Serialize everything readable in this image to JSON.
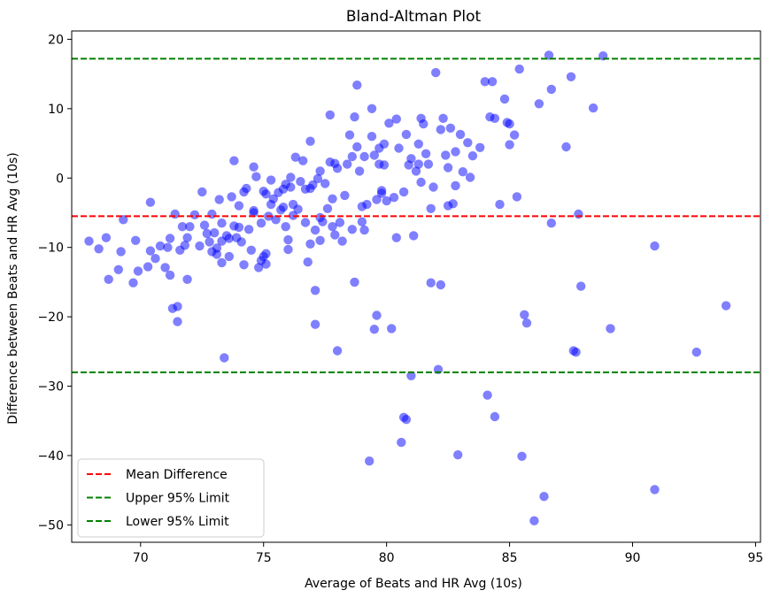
{
  "chart_data": {
    "type": "scatter",
    "title": "Bland-Altman Plot",
    "xlabel": "Average of Beats and HR Avg (10s)",
    "ylabel": "Difference between Beats and HR Avg (10s)",
    "xlim": [
      67.2,
      95.2
    ],
    "ylim": [
      -52.5,
      21.2
    ],
    "xticks": [
      70,
      75,
      80,
      85,
      90,
      95
    ],
    "yticks": [
      -50,
      -40,
      -30,
      -20,
      -10,
      0,
      10,
      20
    ],
    "grid": false,
    "legend_position": "lower-left",
    "point_color": "#0000ff",
    "lines": [
      {
        "name": "Mean Difference",
        "y": -5.5,
        "color": "#ff0000"
      },
      {
        "name": "Upper 95% Limit",
        "y": 17.2,
        "color": "#008000"
      },
      {
        "name": "Lower 95% Limit",
        "y": -28.0,
        "color": "#008000"
      }
    ],
    "points": [
      [
        67.9,
        -9.1
      ],
      [
        68.3,
        -10.2
      ],
      [
        68.6,
        -8.6
      ],
      [
        68.7,
        -14.6
      ],
      [
        69.1,
        -13.2
      ],
      [
        69.2,
        -10.6
      ],
      [
        69.3,
        -6.0
      ],
      [
        69.7,
        -15.1
      ],
      [
        69.8,
        -9.0
      ],
      [
        69.9,
        -13.4
      ],
      [
        70.3,
        -12.8
      ],
      [
        70.4,
        -10.5
      ],
      [
        70.4,
        -3.5
      ],
      [
        70.6,
        -11.6
      ],
      [
        70.8,
        -9.8
      ],
      [
        71.0,
        -12.9
      ],
      [
        71.1,
        -10.0
      ],
      [
        71.2,
        -14.0
      ],
      [
        71.2,
        -8.7
      ],
      [
        71.3,
        -18.8
      ],
      [
        71.4,
        -5.2
      ],
      [
        71.5,
        -20.7
      ],
      [
        71.5,
        -18.5
      ],
      [
        71.6,
        -10.4
      ],
      [
        71.7,
        -7.0
      ],
      [
        71.8,
        -9.7
      ],
      [
        71.9,
        -14.6
      ],
      [
        71.9,
        -8.6
      ],
      [
        72.0,
        -7.0
      ],
      [
        72.2,
        -5.3
      ],
      [
        72.4,
        -9.8
      ],
      [
        72.5,
        -2.0
      ],
      [
        72.6,
        -6.8
      ],
      [
        72.7,
        -8.0
      ],
      [
        72.8,
        -9.2
      ],
      [
        72.9,
        -5.2
      ],
      [
        72.9,
        -10.6
      ],
      [
        73.0,
        -7.9
      ],
      [
        73.1,
        -11.0
      ],
      [
        73.1,
        -10.1
      ],
      [
        73.2,
        -3.1
      ],
      [
        73.3,
        -9.1
      ],
      [
        73.3,
        -6.5
      ],
      [
        73.3,
        -12.2
      ],
      [
        73.4,
        -25.9
      ],
      [
        73.5,
        -8.3
      ],
      [
        73.6,
        -11.3
      ],
      [
        73.6,
        -8.7
      ],
      [
        73.7,
        -2.7
      ],
      [
        73.8,
        -6.9
      ],
      [
        73.8,
        2.5
      ],
      [
        73.9,
        -8.6
      ],
      [
        74.0,
        -4.0
      ],
      [
        74.0,
        -7.1
      ],
      [
        74.1,
        -9.2
      ],
      [
        74.2,
        -2.0
      ],
      [
        74.2,
        -12.5
      ],
      [
        74.3,
        -1.5
      ],
      [
        74.4,
        -7.4
      ],
      [
        74.5,
        -10.4
      ],
      [
        74.6,
        1.6
      ],
      [
        74.6,
        -5.0
      ],
      [
        74.6,
        -4.7
      ],
      [
        74.7,
        0.2
      ],
      [
        74.8,
        -12.9
      ],
      [
        74.9,
        -11.9
      ],
      [
        74.9,
        -6.5
      ],
      [
        75.0,
        -11.3
      ],
      [
        75.0,
        -1.9
      ],
      [
        75.1,
        -12.4
      ],
      [
        75.1,
        -10.9
      ],
      [
        75.1,
        -2.3
      ],
      [
        75.2,
        -5.5
      ],
      [
        75.3,
        -0.3
      ],
      [
        75.3,
        -3.8
      ],
      [
        75.4,
        -3.0
      ],
      [
        75.5,
        -6.0
      ],
      [
        75.6,
        -2.1
      ],
      [
        75.7,
        -4.6
      ],
      [
        75.8,
        -1.6
      ],
      [
        75.8,
        -4.2
      ],
      [
        75.9,
        -7.0
      ],
      [
        75.9,
        -0.9
      ],
      [
        76.0,
        -8.9
      ],
      [
        76.0,
        -10.3
      ],
      [
        76.1,
        0.1
      ],
      [
        76.1,
        -1.3
      ],
      [
        76.2,
        -5.4
      ],
      [
        76.2,
        -3.8
      ],
      [
        76.3,
        3.0
      ],
      [
        76.4,
        -4.5
      ],
      [
        76.5,
        -0.5
      ],
      [
        76.6,
        2.5
      ],
      [
        76.7,
        -6.4
      ],
      [
        76.7,
        -1.6
      ],
      [
        76.8,
        -12.1
      ],
      [
        76.9,
        -9.5
      ],
      [
        76.9,
        -1.5
      ],
      [
        76.9,
        5.3
      ],
      [
        77.0,
        -1.0
      ],
      [
        77.1,
        -16.2
      ],
      [
        77.1,
        -21.1
      ],
      [
        77.1,
        -7.5
      ],
      [
        77.2,
        -0.1
      ],
      [
        77.3,
        1.0
      ],
      [
        77.3,
        -9.0
      ],
      [
        77.3,
        -5.7
      ],
      [
        77.4,
        -6.3
      ],
      [
        77.5,
        -0.8
      ],
      [
        77.6,
        -4.4
      ],
      [
        77.7,
        9.1
      ],
      [
        77.7,
        2.3
      ],
      [
        77.8,
        -7.0
      ],
      [
        77.8,
        -3.0
      ],
      [
        77.9,
        2.1
      ],
      [
        77.9,
        -8.2
      ],
      [
        78.0,
        -24.9
      ],
      [
        78.0,
        1.4
      ],
      [
        78.1,
        -6.4
      ],
      [
        78.2,
        -9.1
      ],
      [
        78.3,
        -2.5
      ],
      [
        78.4,
        2.0
      ],
      [
        78.5,
        6.2
      ],
      [
        78.6,
        3.1
      ],
      [
        78.6,
        -7.4
      ],
      [
        78.7,
        -15.0
      ],
      [
        78.7,
        8.8
      ],
      [
        78.8,
        13.4
      ],
      [
        78.8,
        4.5
      ],
      [
        78.9,
        1.0
      ],
      [
        79.0,
        -4.1
      ],
      [
        79.0,
        -6.3
      ],
      [
        79.1,
        3.1
      ],
      [
        79.1,
        -7.5
      ],
      [
        79.2,
        -3.8
      ],
      [
        79.3,
        -40.8
      ],
      [
        79.4,
        10.0
      ],
      [
        79.4,
        6.0
      ],
      [
        79.5,
        3.3
      ],
      [
        79.5,
        -21.8
      ],
      [
        79.6,
        -19.8
      ],
      [
        79.6,
        -3.1
      ],
      [
        79.7,
        2.0
      ],
      [
        79.7,
        4.3
      ],
      [
        79.8,
        -2.2
      ],
      [
        79.8,
        -1.8
      ],
      [
        79.9,
        1.9
      ],
      [
        79.9,
        4.9
      ],
      [
        80.0,
        -3.3
      ],
      [
        80.1,
        7.9
      ],
      [
        80.2,
        -21.7
      ],
      [
        80.3,
        -2.8
      ],
      [
        80.4,
        8.5
      ],
      [
        80.4,
        -8.6
      ],
      [
        80.5,
        4.3
      ],
      [
        80.6,
        -38.1
      ],
      [
        80.7,
        -2.0
      ],
      [
        80.7,
        -34.5
      ],
      [
        80.8,
        -34.8
      ],
      [
        80.8,
        6.3
      ],
      [
        80.9,
        1.9
      ],
      [
        81.0,
        -28.5
      ],
      [
        81.0,
        2.8
      ],
      [
        81.1,
        -8.3
      ],
      [
        81.2,
        1.0
      ],
      [
        81.3,
        4.9
      ],
      [
        81.3,
        2.0
      ],
      [
        81.4,
        8.6
      ],
      [
        81.4,
        -0.6
      ],
      [
        81.5,
        7.8
      ],
      [
        81.6,
        3.5
      ],
      [
        81.7,
        2.0
      ],
      [
        81.8,
        -15.1
      ],
      [
        81.8,
        -4.4
      ],
      [
        81.9,
        -1.3
      ],
      [
        82.0,
        15.2
      ],
      [
        82.1,
        -27.6
      ],
      [
        82.2,
        -15.4
      ],
      [
        82.2,
        7.0
      ],
      [
        82.3,
        8.6
      ],
      [
        82.4,
        3.3
      ],
      [
        82.5,
        -4.0
      ],
      [
        82.5,
        1.5
      ],
      [
        82.6,
        7.2
      ],
      [
        82.7,
        -3.7
      ],
      [
        82.8,
        3.8
      ],
      [
        82.8,
        -1.1
      ],
      [
        82.9,
        -39.9
      ],
      [
        83.0,
        6.3
      ],
      [
        83.1,
        0.9
      ],
      [
        83.3,
        5.1
      ],
      [
        83.4,
        0.1
      ],
      [
        83.5,
        3.2
      ],
      [
        83.8,
        4.4
      ],
      [
        84.0,
        13.9
      ],
      [
        84.1,
        -31.3
      ],
      [
        84.2,
        8.8
      ],
      [
        84.3,
        13.9
      ],
      [
        84.4,
        -34.4
      ],
      [
        84.4,
        8.6
      ],
      [
        84.6,
        -3.8
      ],
      [
        84.8,
        11.4
      ],
      [
        84.9,
        8.0
      ],
      [
        85.0,
        7.8
      ],
      [
        85.0,
        4.8
      ],
      [
        85.2,
        6.2
      ],
      [
        85.3,
        -2.7
      ],
      [
        85.4,
        15.7
      ],
      [
        85.5,
        -40.1
      ],
      [
        85.6,
        -19.7
      ],
      [
        85.7,
        -20.9
      ],
      [
        86.0,
        -49.4
      ],
      [
        86.2,
        10.7
      ],
      [
        86.4,
        -45.9
      ],
      [
        86.6,
        17.7
      ],
      [
        86.7,
        12.8
      ],
      [
        86.7,
        -6.5
      ],
      [
        87.3,
        4.5
      ],
      [
        87.5,
        14.6
      ],
      [
        87.6,
        -24.9
      ],
      [
        87.7,
        -25.1
      ],
      [
        87.8,
        -5.2
      ],
      [
        87.9,
        -15.6
      ],
      [
        88.4,
        10.1
      ],
      [
        88.8,
        17.6
      ],
      [
        89.1,
        -21.7
      ],
      [
        90.9,
        -9.8
      ],
      [
        90.9,
        -44.9
      ],
      [
        92.6,
        -25.1
      ],
      [
        93.8,
        -18.4
      ]
    ]
  }
}
